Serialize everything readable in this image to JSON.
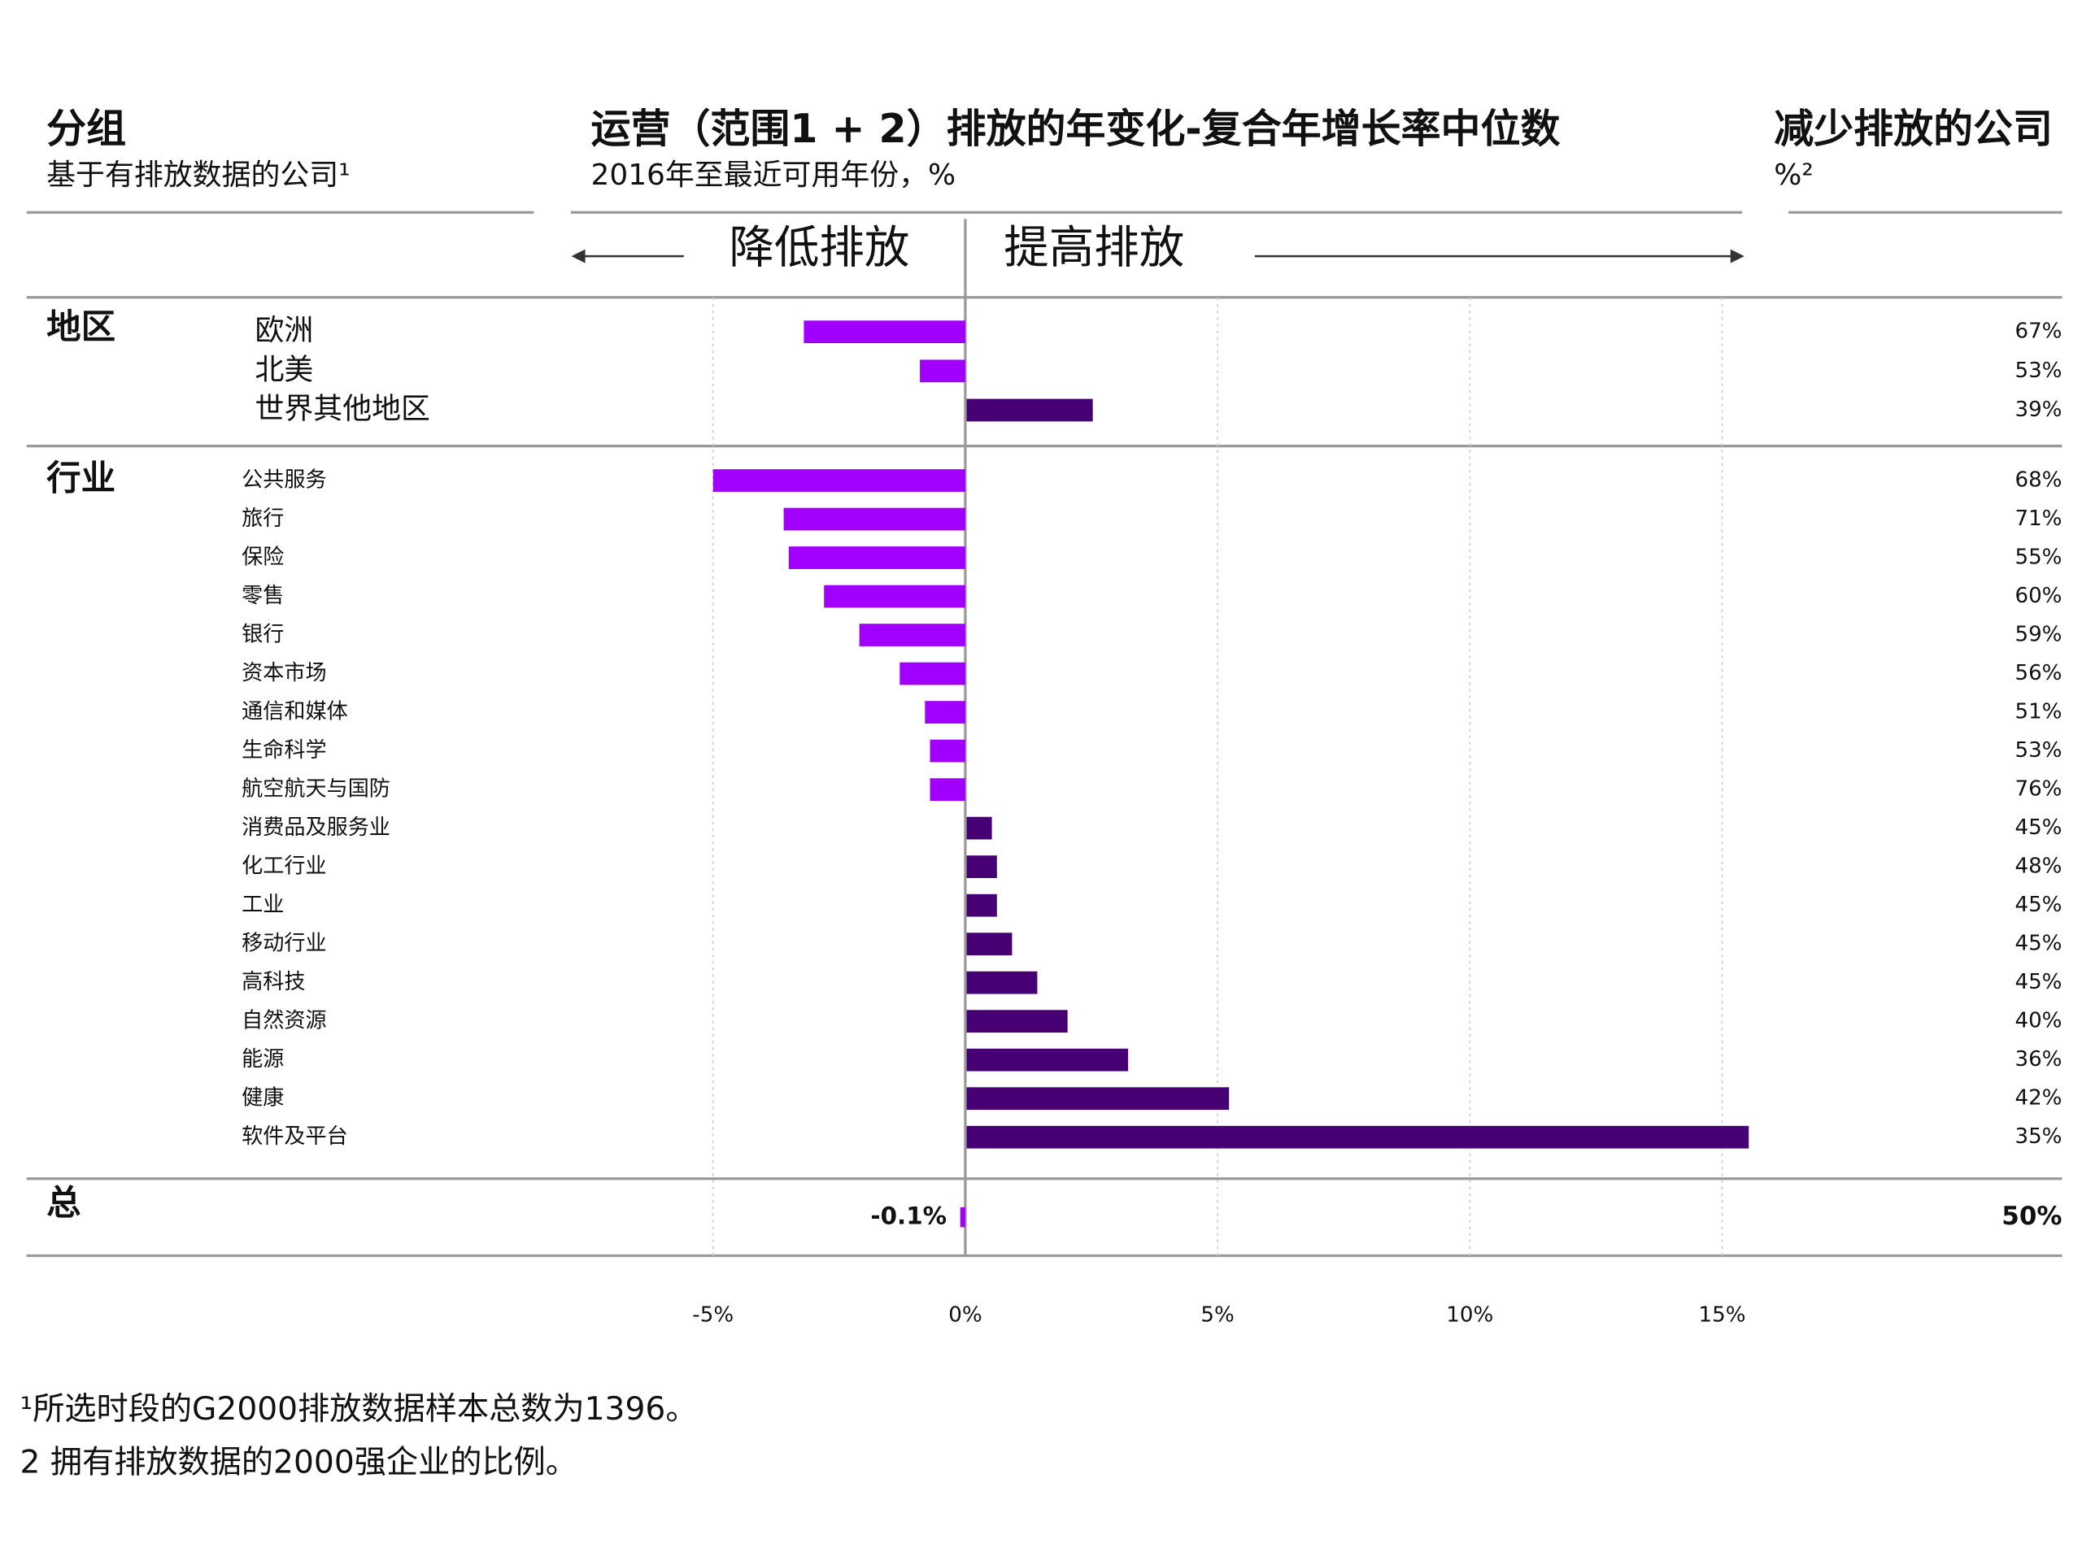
{
  "chart_data": {
    "type": "bar",
    "orientation": "horizontal",
    "left_title": "分组",
    "left_subtitle": "基于有排放数据的公司¹",
    "title": "运营（范围1 + 2）排放的年变化-复合年增长率中位数",
    "subtitle": "2016年至最近可用年份，%",
    "right_title": "减少排放的公司",
    "right_subtitle": "%²",
    "decrease_label": "降低排放",
    "increase_label": "提高排放",
    "negative_color": "#a100ff",
    "positive_color": "#460073",
    "grid": true,
    "xlim": [
      -7.5,
      15.5
    ],
    "xticks": [
      {
        "value": -5,
        "label": "-5%"
      },
      {
        "value": 0,
        "label": "0%"
      },
      {
        "value": 5,
        "label": "5%"
      },
      {
        "value": 10,
        "label": "10%"
      },
      {
        "value": 15,
        "label": "15%"
      }
    ],
    "groups": [
      {
        "name": "地区",
        "categories": [
          "欧洲",
          "北美",
          "世界其他地区"
        ],
        "values": [
          -3.2,
          -0.9,
          2.5
        ],
        "shares": [
          67,
          53,
          39
        ],
        "share_labels": [
          "67%",
          "53%",
          "39%"
        ]
      },
      {
        "name": "行业",
        "categories": [
          "公共服务",
          "旅行",
          "保险",
          "零售",
          "银行",
          "资本市场",
          "通信和媒体",
          "生命科学",
          "航空航天与国防",
          "消费品及服务业",
          "化工行业",
          "工业",
          "移动行业",
          "高科技",
          "自然资源",
          "能源",
          "健康",
          "软件及平台"
        ],
        "values": [
          -5.0,
          -3.6,
          -3.5,
          -2.8,
          -2.1,
          -1.3,
          -0.8,
          -0.7,
          -0.7,
          0.5,
          0.6,
          0.6,
          0.9,
          1.4,
          2.0,
          3.2,
          5.2,
          15.5
        ],
        "shares": [
          68,
          71,
          55,
          60,
          59,
          56,
          51,
          53,
          76,
          45,
          48,
          45,
          45,
          45,
          40,
          36,
          42,
          35
        ],
        "share_labels": [
          "68%",
          "71%",
          "55%",
          "60%",
          "59%",
          "56%",
          "51%",
          "53%",
          "76%",
          "45%",
          "48%",
          "45%",
          "45%",
          "45%",
          "40%",
          "36%",
          "42%",
          "35%"
        ]
      },
      {
        "name": "总",
        "values": [
          -0.1
        ],
        "value_labels": [
          "-0.1%"
        ],
        "shares": [
          50
        ],
        "share_labels": [
          "50%"
        ]
      }
    ],
    "footnotes": [
      "¹所选时段的G2000排放数据样本总数为1396。",
      "2 拥有排放数据的2000强企业的比例。"
    ]
  }
}
